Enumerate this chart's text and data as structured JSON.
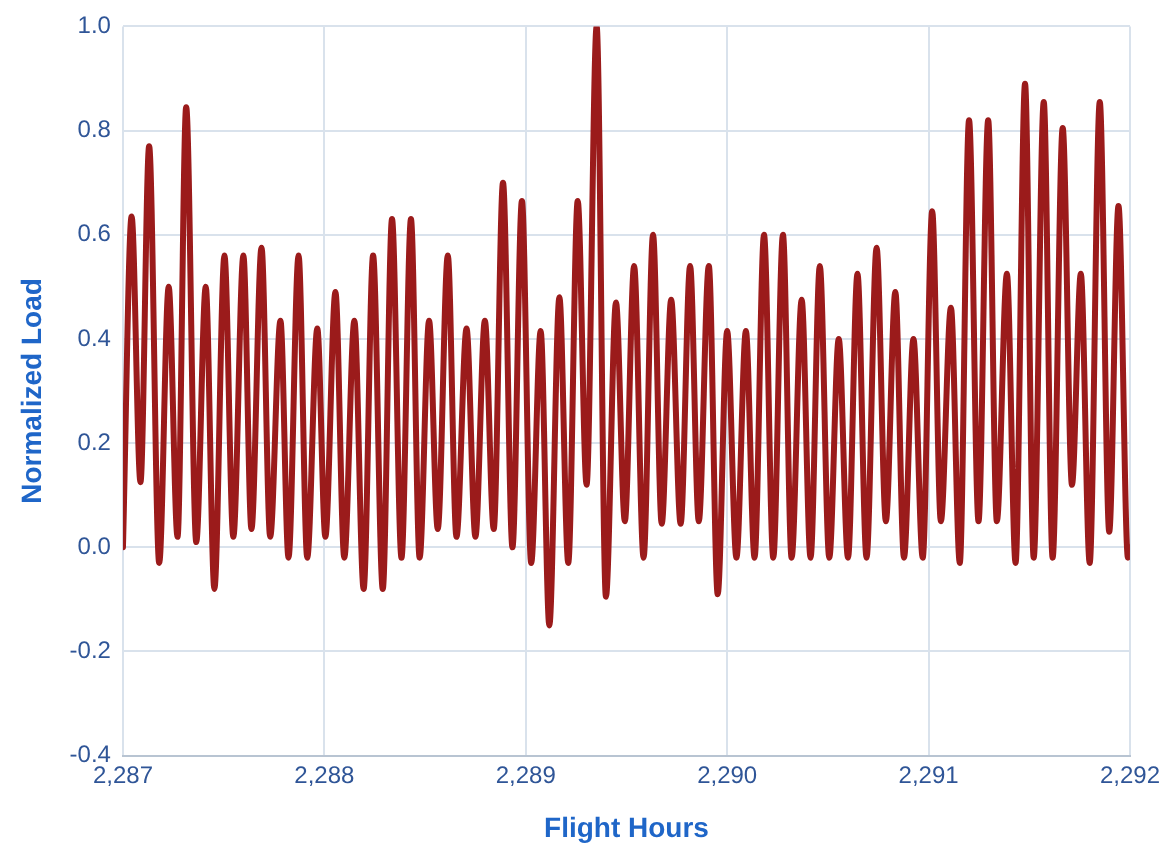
{
  "chart_data": {
    "type": "line",
    "xlabel": "Flight Hours",
    "ylabel": "Normalized Load",
    "xlim": [
      2287,
      2292
    ],
    "ylim": [
      -0.4,
      1.0
    ],
    "xticks": [
      {
        "value": 2287,
        "label": "2,287"
      },
      {
        "value": 2288,
        "label": "2,288"
      },
      {
        "value": 2289,
        "label": "2,289"
      },
      {
        "value": 2290,
        "label": "2,290"
      },
      {
        "value": 2291,
        "label": "2,291"
      },
      {
        "value": 2292,
        "label": "2,292"
      }
    ],
    "yticks": [
      {
        "value": -0.4,
        "label": "-0.4"
      },
      {
        "value": -0.2,
        "label": "-0.2"
      },
      {
        "value": 0,
        "label": "0.0"
      },
      {
        "value": 0.2,
        "label": "0.2"
      },
      {
        "value": 0.4,
        "label": "0.4"
      },
      {
        "value": 0.6,
        "label": "0.6"
      },
      {
        "value": 0.8,
        "label": "0.8"
      },
      {
        "value": 1.0,
        "label": "1.0"
      }
    ],
    "grid": true,
    "legend": false,
    "marker": "none",
    "line_style": "solid",
    "x": [
      2287.0,
      2287.043,
      2287.087,
      2287.13,
      2287.18,
      2287.227,
      2287.271,
      2287.314,
      2287.364,
      2287.411,
      2287.454,
      2287.504,
      2287.548,
      2287.598,
      2287.638,
      2287.688,
      2287.731,
      2287.782,
      2287.822,
      2287.872,
      2287.915,
      2287.965,
      2288.005,
      2288.055,
      2288.099,
      2288.149,
      2288.195,
      2288.242,
      2288.29,
      2288.336,
      2288.383,
      2288.43,
      2288.473,
      2288.52,
      2288.563,
      2288.613,
      2288.656,
      2288.706,
      2288.75,
      2288.797,
      2288.841,
      2288.887,
      2288.934,
      2288.981,
      2289.027,
      2289.074,
      2289.117,
      2289.167,
      2289.211,
      2289.258,
      2289.302,
      2289.352,
      2289.398,
      2289.448,
      2289.492,
      2289.538,
      2289.585,
      2289.632,
      2289.675,
      2289.722,
      2289.769,
      2289.816,
      2289.859,
      2289.909,
      2289.953,
      2290.0,
      2290.046,
      2290.093,
      2290.136,
      2290.183,
      2290.229,
      2290.277,
      2290.32,
      2290.37,
      2290.414,
      2290.46,
      2290.507,
      2290.554,
      2290.6,
      2290.647,
      2290.692,
      2290.742,
      2290.788,
      2290.835,
      2290.878,
      2290.925,
      2290.971,
      2291.018,
      2291.061,
      2291.111,
      2291.155,
      2291.201,
      2291.248,
      2291.296,
      2291.339,
      2291.389,
      2291.432,
      2291.479,
      2291.522,
      2291.572,
      2291.616,
      2291.666,
      2291.712,
      2291.756,
      2291.8,
      2291.85,
      2291.897,
      2291.943,
      2291.99,
      2292.0
    ],
    "series": [
      {
        "color": "#9b1b1b",
        "values": [
          0.0,
          0.635,
          0.125,
          0.77,
          -0.03,
          0.5,
          0.02,
          0.845,
          0.01,
          0.5,
          -0.08,
          0.56,
          0.02,
          0.56,
          0.035,
          0.575,
          0.02,
          0.435,
          -0.02,
          0.56,
          -0.02,
          0.42,
          0.02,
          0.49,
          -0.02,
          0.435,
          -0.08,
          0.56,
          -0.08,
          0.63,
          -0.02,
          0.63,
          -0.02,
          0.435,
          0.035,
          0.56,
          0.02,
          0.42,
          0.02,
          0.435,
          0.035,
          0.7,
          0.0,
          0.665,
          -0.03,
          0.415,
          -0.15,
          0.48,
          -0.03,
          0.665,
          0.12,
          1.0,
          -0.095,
          0.47,
          0.05,
          0.54,
          -0.02,
          0.6,
          0.045,
          0.475,
          0.045,
          0.54,
          0.05,
          0.54,
          -0.09,
          0.415,
          -0.02,
          0.415,
          -0.02,
          0.6,
          -0.02,
          0.6,
          -0.02,
          0.475,
          -0.02,
          0.54,
          -0.02,
          0.4,
          -0.02,
          0.525,
          -0.02,
          0.575,
          0.05,
          0.49,
          -0.02,
          0.4,
          -0.02,
          0.645,
          0.05,
          0.46,
          -0.03,
          0.82,
          0.05,
          0.82,
          0.05,
          0.525,
          -0.03,
          0.89,
          -0.02,
          0.855,
          -0.02,
          0.805,
          0.12,
          0.525,
          -0.03,
          0.855,
          0.03,
          0.655,
          -0.02,
          0.0
        ]
      }
    ]
  }
}
